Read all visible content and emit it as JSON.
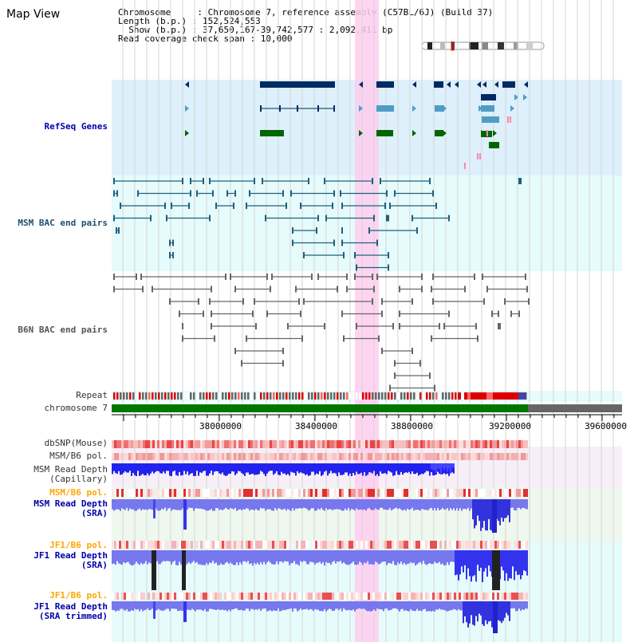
{
  "title": "Map View",
  "info": {
    "chromosome": "Chromosome     : Chromosome 7, reference assembly (C57BL/6J) (Build 37)",
    "length": "Length (b.p.) : 152,524,553",
    "show": "  Show (b.p.) : 37,650,167-39,742,577 : 2,092,411 bp",
    "coverage": "Read coverage check span : 10,000"
  },
  "tracks": {
    "refseq": "RefSeq Genes",
    "msm_bac": "MSM BAC end pairs",
    "b6n_bac": "B6N BAC end pairs",
    "repeat": "Repeat",
    "chromosome": "chromosome 7",
    "dbsnp": "dbSNP(Mouse)",
    "msm_b6_pol_1": "MSM/B6 pol.",
    "msm_depth_cap": "MSM Read Depth\n(Capillary)",
    "msm_b6_pol_2": "MSM/B6 pol.",
    "msm_depth_sra": "MSM Read Depth\n(SRA)",
    "jf1_b6_pol_1": "JF1/B6 pol.",
    "jf1_depth_sra": "JF1 Read Depth\n(SRA)",
    "jf1_b6_pol_2": "JF1/B6 pol.",
    "jf1_depth_trim": "JF1 Read Depth\n(SRA trimmed)"
  },
  "axis": {
    "ticks": [
      "38000000",
      "38400000",
      "38800000",
      "39200000",
      "39600000"
    ]
  },
  "colors": {
    "refseq_bg": "#ddf0fb",
    "bac_bg": "#e6fbfb",
    "highlight": "#ffccee",
    "refseq_dark": "#002a63",
    "refseq_light": "#4f9dc6",
    "refseq_green": "#006600",
    "chromosome": "#007700",
    "depth_blue": "#3333ff",
    "depth_light": "#8888ff"
  }
}
